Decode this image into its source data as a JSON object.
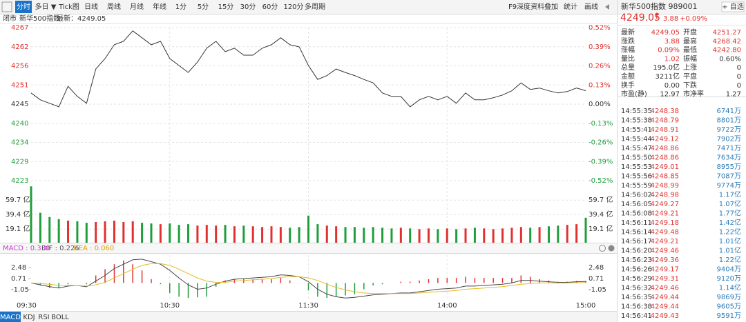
{
  "toolbar": {
    "tabs": [
      "分时",
      "多日 ▼",
      "Tick图",
      "日线",
      "周线",
      "月线",
      "年线",
      "1分",
      "5分",
      "15分",
      "30分",
      "60分",
      "120分",
      "多周期"
    ],
    "tools": [
      "F9深度资料",
      "叠加",
      "统计",
      "画线"
    ]
  },
  "info_bar": {
    "status": "闭市",
    "name": "新华500指数",
    "latest": "最新：4249.05"
  },
  "macd_header": {
    "macd": "MACD : 0.330",
    "dif": "DIF : 0.226",
    "dea": "DEA : 0.060"
  },
  "indicator_tabs": [
    "MACD",
    "KDJ",
    "RSI",
    "BOLL"
  ],
  "quote": {
    "title": "新华500指数  989001",
    "add_button": "+ 自选",
    "price": "4249.05",
    "change": "3.88",
    "change_pct": "+0.09%",
    "stats": [
      [
        "最新",
        "4249.05",
        "开盘",
        "4251.27"
      ],
      [
        "涨跌",
        "3.88",
        "最高",
        "4268.42"
      ],
      [
        "涨幅",
        "0.09%",
        "最低",
        "4242.80"
      ],
      [
        "量比",
        "1.02",
        "振幅",
        "0.60%"
      ],
      [
        "总量",
        "195.0亿",
        "上涨",
        "0"
      ],
      [
        "金额",
        "3211亿",
        "平盘",
        "0"
      ],
      [
        "换手",
        "0.00",
        "下跌",
        "0"
      ],
      [
        "市盈(静)",
        "12.97",
        "市净率",
        "1.27"
      ]
    ]
  },
  "trades": [
    [
      "14:55:35",
      "4248.38",
      "6741万"
    ],
    [
      "14:55:38",
      "4248.79",
      "8801万"
    ],
    [
      "14:55:41",
      "4248.91",
      "9722万"
    ],
    [
      "14:55:44",
      "4249.12",
      "7902万"
    ],
    [
      "14:55:47",
      "4248.86",
      "7471万"
    ],
    [
      "14:55:50",
      "4248.86",
      "7634万"
    ],
    [
      "14:55:53",
      "4249.01",
      "8955万"
    ],
    [
      "14:55:56",
      "4248.85",
      "7087万"
    ],
    [
      "14:55:59",
      "4248.99",
      "9774万"
    ],
    [
      "14:56:02",
      "4248.98",
      "1.17亿"
    ],
    [
      "14:56:05",
      "4249.27",
      "1.07亿"
    ],
    [
      "14:56:08",
      "4249.21",
      "1.77亿"
    ],
    [
      "14:56:11",
      "4249.18",
      "1.42亿"
    ],
    [
      "14:56:14",
      "4249.48",
      "1.22亿"
    ],
    [
      "14:56:17",
      "4249.21",
      "1.01亿"
    ],
    [
      "14:56:20",
      "4249.46",
      "1.01亿"
    ],
    [
      "14:56:23",
      "4249.36",
      "1.22亿"
    ],
    [
      "14:56:26",
      "4249.17",
      "9404万"
    ],
    [
      "14:56:29",
      "4249.31",
      "9120万"
    ],
    [
      "14:56:32",
      "4249.46",
      "1.14亿"
    ],
    [
      "14:56:35",
      "4249.44",
      "9869万"
    ],
    [
      "14:56:38",
      "4249.44",
      "9605万"
    ],
    [
      "14:56:41",
      "4249.43",
      "9591万"
    ]
  ],
  "chart_data": [
    {
      "type": "line",
      "color": "#333333",
      "values": [
        4248.4,
        4246.4,
        4245.4,
        4244.4,
        4250.3,
        4247.4,
        4245.4,
        4255.3,
        4258.3,
        4262.3,
        4263.3,
        4266.3,
        4264.3,
        4262.3,
        4263.3,
        4258.3,
        4256.3,
        4254.3,
        4257.3,
        4261.3,
        4263.3,
        4260.3,
        4261.3,
        4259.3,
        4259.3,
        4261.3,
        4262.3,
        4264.3,
        4262.3,
        4261.7,
        4256.3,
        4252.3,
        4253.4,
        4255.3,
        4254.3,
        4253.4,
        4252.3,
        4251.3,
        4248.4,
        4247.4,
        4247.4,
        4244.4,
        4246.4,
        4247.4,
        4246.4,
        4247.4,
        4245.4,
        4248.4,
        4246.4,
        4246.4,
        4247.0,
        4247.8,
        4249.0,
        4251.3,
        4249.4,
        4249.8,
        4249.0,
        4248.4,
        4248.8,
        4249.8,
        4249.05
      ],
      "ylim": [
        4223.09,
        4267.25
      ],
      "yticks": [
        {
          "value": 4267.25,
          "label": "4267"
        },
        {
          "value": 4261.73,
          "label": "4262"
        },
        {
          "value": 4256.21,
          "label": "4256"
        },
        {
          "value": 4250.69,
          "label": "4251"
        },
        {
          "value": 4245.17,
          "label": "4245"
        },
        {
          "value": 4239.65,
          "label": "4240"
        },
        {
          "value": 4234.13,
          "label": "4234"
        },
        {
          "value": 4228.61,
          "label": "4229"
        },
        {
          "value": 4223.09,
          "label": "4223"
        }
      ],
      "y2lim": [
        -0.52,
        0.52
      ],
      "y2ticks": [
        {
          "value": 0.52,
          "label": "0.52%"
        },
        {
          "value": 0.39,
          "label": "0.39%"
        },
        {
          "value": 0.26,
          "label": "0.26%"
        },
        {
          "value": 0.13,
          "label": "0.13%"
        },
        {
          "value": 0,
          "label": "0.00%"
        },
        {
          "value": -0.13,
          "label": "-0.13%"
        },
        {
          "value": -0.26,
          "label": "-0.26%"
        },
        {
          "value": -0.39,
          "label": "-0.39%"
        },
        {
          "value": -0.52,
          "label": "-0.52%"
        }
      ],
      "up_color": "#e0312f",
      "down_color": "#1f9d3a",
      "grid": true
    },
    {
      "type": "bar",
      "values": [
        79,
        42,
        36,
        33,
        31,
        30,
        28,
        29,
        30,
        31,
        29,
        30,
        28,
        27,
        26,
        27,
        25,
        26,
        24,
        25,
        24,
        25,
        23,
        24,
        23,
        22,
        23,
        22,
        21,
        22,
        38,
        26,
        24,
        23,
        22,
        22,
        21,
        22,
        21,
        20,
        21,
        20,
        19,
        20,
        19,
        20,
        19,
        20,
        21,
        20,
        19,
        20,
        21,
        22,
        21,
        22,
        23,
        24,
        25,
        26,
        35
      ],
      "ylim": [
        0,
        84.1
      ],
      "yticks": [
        {
          "value": 59.7,
          "label": "59.7 亿"
        },
        {
          "value": 39.4,
          "label": "39.4 亿"
        },
        {
          "value": 19.1,
          "label": "19.1 亿"
        }
      ],
      "up_color": "#e0312f",
      "down_color": "#1f9d3a",
      "grid": true
    },
    {
      "type": "macd",
      "categories": [
        "09:30",
        null,
        null,
        null,
        null,
        null,
        null,
        null,
        null,
        null,
        null,
        null,
        null,
        null,
        null,
        "10:30",
        null,
        null,
        null,
        null,
        null,
        null,
        null,
        null,
        null,
        null,
        null,
        null,
        null,
        null,
        "11:30",
        null,
        null,
        null,
        null,
        null,
        null,
        null,
        null,
        null,
        null,
        null,
        null,
        null,
        null,
        "14:00",
        null,
        null,
        null,
        null,
        null,
        null,
        null,
        null,
        null,
        null,
        null,
        null,
        null,
        null,
        "15:00"
      ],
      "histogram": {
        "values": [
          0,
          -0.4,
          -0.8,
          -0.8,
          -0.2,
          0,
          -0.2,
          1.2,
          2.2,
          3.0,
          3.6,
          3.0,
          2.0,
          0.6,
          -0.2,
          -1.6,
          -2.2,
          -2.4,
          -2.3,
          -2.2,
          -0.6,
          0.4,
          0.6,
          0.6,
          0.6,
          0.6,
          0.6,
          0.8,
          0.4,
          0,
          -1.2,
          -2.2,
          -2.4,
          -2.2,
          -2.0,
          -1.8,
          -1.0,
          -0.4,
          -0.2,
          0,
          0.2,
          0.2,
          0.4,
          0.6,
          0.8,
          0.8,
          0.8,
          1.0,
          0.8,
          0.8,
          0.8,
          0.8,
          0.8,
          1.2,
          1.0,
          0.6,
          0.4,
          0.2,
          0.2,
          0.32,
          0.33
        ],
        "up_color": "#e0312f",
        "down_color": "#1f9d3a"
      },
      "series": [
        {
          "color": "#444444",
          "values": [
            0,
            -0.3,
            -0.6,
            -0.8,
            -0.5,
            -0.4,
            -0.6,
            0.3,
            1.2,
            2.3,
            3.0,
            3.7,
            3.8,
            3.4,
            3.0,
            2.0,
            0.8,
            -0.3,
            -1.0,
            -0.8,
            -0.2,
            0.3,
            0.6,
            0.7,
            0.8,
            0.9,
            1.0,
            1.3,
            1.2,
            1.0,
            0.2,
            -1.0,
            -1.8,
            -2.2,
            -2.4,
            -2.3,
            -2.1,
            -1.9,
            -1.8,
            -1.7,
            -1.6,
            -1.6,
            -1.4,
            -1.2,
            -1.0,
            -0.9,
            -0.8,
            -0.5,
            -0.5,
            -0.4,
            -0.3,
            -0.2,
            0,
            0.4,
            0.4,
            0.3,
            0.2,
            0.1,
            0.1,
            0.2,
            0.226
          ]
        },
        {
          "color": "#e8b923",
          "values": [
            0,
            -0.1,
            -0.2,
            -0.4,
            -0.4,
            -0.4,
            -0.5,
            -0.3,
            0.1,
            0.8,
            1.5,
            2.2,
            2.8,
            3.1,
            3.1,
            2.8,
            2.2,
            1.5,
            0.8,
            0.3,
            0.1,
            0.1,
            0.3,
            0.4,
            0.5,
            0.6,
            0.7,
            0.9,
            1.0,
            1.0,
            0.8,
            0.4,
            -0.2,
            -0.7,
            -1.1,
            -1.4,
            -1.6,
            -1.7,
            -1.7,
            -1.7,
            -1.7,
            -1.7,
            -1.6,
            -1.5,
            -1.4,
            -1.3,
            -1.2,
            -1.0,
            -0.9,
            -0.8,
            -0.7,
            -0.6,
            -0.4,
            -0.2,
            -0.1,
            0,
            0,
            0,
            0,
            0.04,
            0.06
          ]
        }
      ],
      "ylim": [
        -2.71,
        4.45
      ],
      "yticks": [
        2.48,
        0.71,
        -1.05
      ]
    }
  ]
}
